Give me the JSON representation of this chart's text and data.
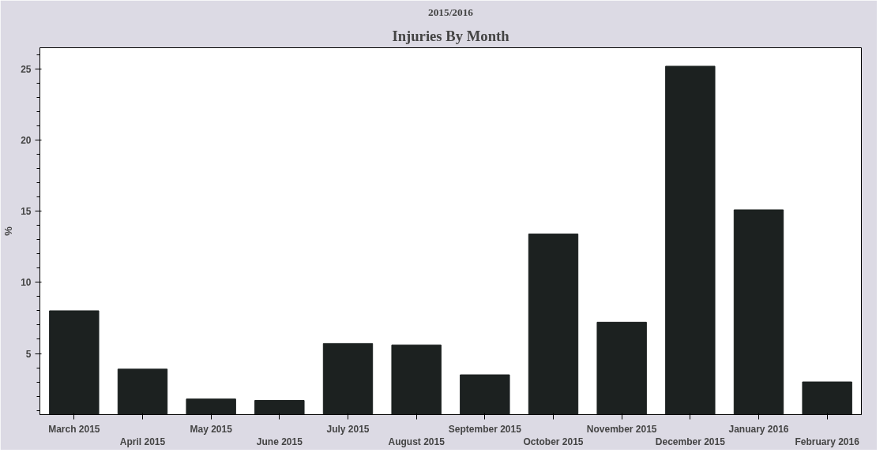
{
  "chart_data": {
    "type": "bar",
    "title": "Injuries By Month",
    "subtitle": "2015/2016",
    "ylabel": "%",
    "categories": [
      "March 2015",
      "April 2015",
      "May 2015",
      "June 2015",
      "July 2015",
      "August 2015",
      "September 2015",
      "October 2015",
      "November 2015",
      "December 2015",
      "January 2016",
      "February 2016"
    ],
    "values": [
      8.0,
      3.9,
      1.8,
      1.7,
      5.7,
      5.6,
      3.5,
      13.4,
      7.2,
      25.2,
      15.1,
      3.0
    ],
    "color": "#1c2120",
    "ylim": [
      0.7,
      26.5
    ],
    "yticks": [
      5,
      10,
      15,
      20,
      25
    ],
    "grid": false
  }
}
